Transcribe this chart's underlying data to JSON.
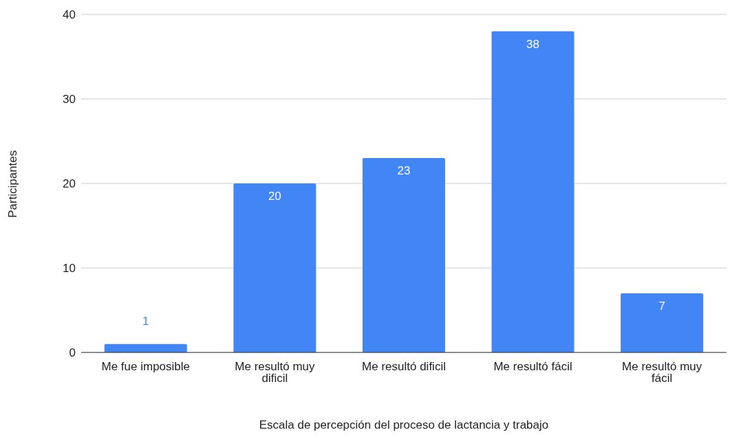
{
  "chart_data": {
    "type": "bar",
    "xlabel": "Escala de percepción del proceso de lactancia y trabajo",
    "ylabel": "Participantes",
    "categories": [
      "Me fue imposible",
      "Me resultó muy dificil",
      "Me resultó dificil",
      "Me resultó fácil",
      "Me resultó muy fácil"
    ],
    "values": [
      1,
      20,
      23,
      38,
      7
    ],
    "color": "#4285f4",
    "ylim": [
      0,
      40
    ],
    "yticks": [
      0,
      10,
      20,
      30,
      40
    ],
    "grid": "y",
    "data_labels": true
  }
}
